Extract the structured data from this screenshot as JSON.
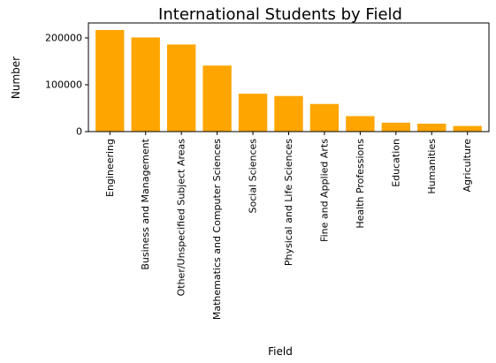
{
  "chart_data": {
    "type": "bar",
    "title": "International Students by Field",
    "xlabel": "Field",
    "ylabel": "Number",
    "categories": [
      "Engineering",
      "Business and Management",
      "Other/Unspecified Subject Areas",
      "Mathematics and Computer Sciences",
      "Social Sciences",
      "Physical and Life Sciences",
      "Fine and Applied Arts",
      "Health Professions",
      "Education",
      "Humanities",
      "Agriculture"
    ],
    "values": [
      217000,
      201000,
      186000,
      141000,
      81000,
      76000,
      59000,
      33000,
      19000,
      17000,
      12000
    ],
    "ylim": [
      0,
      232000
    ],
    "yticks": [
      0,
      100000,
      200000
    ],
    "ytick_labels": [
      "0",
      "100000",
      "200000"
    ],
    "grid": false,
    "bar_color": "#FFA500"
  }
}
